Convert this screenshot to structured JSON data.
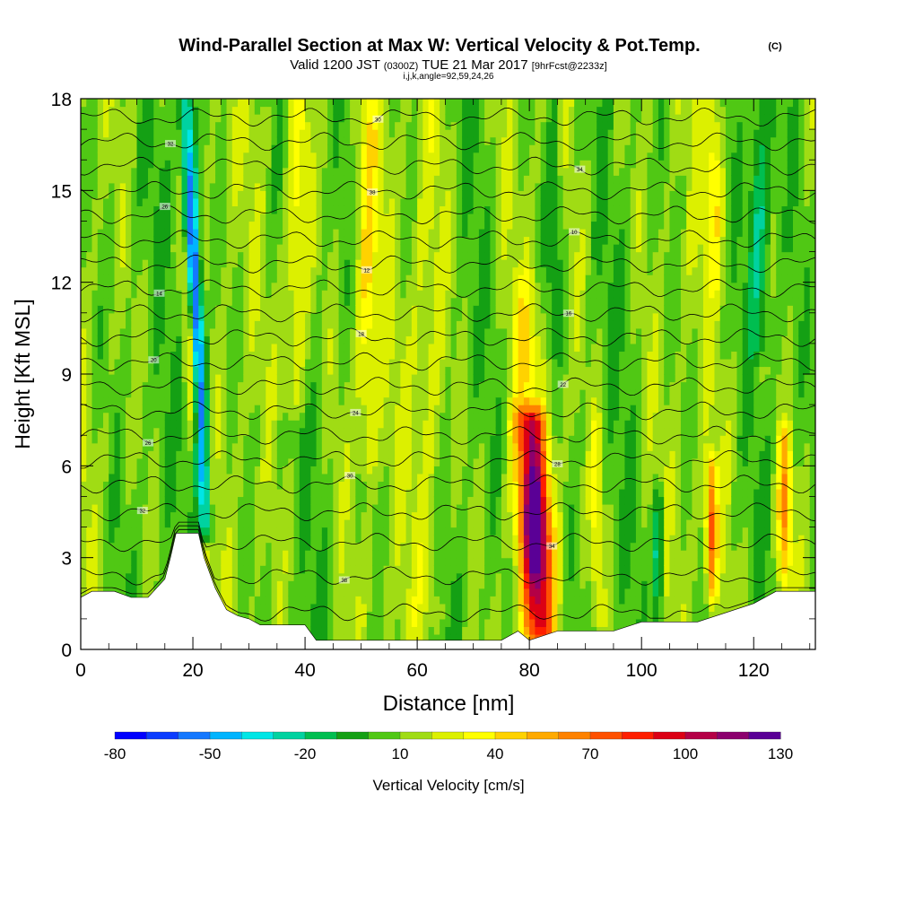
{
  "chart_data": {
    "type": "heatmap",
    "title": "Wind-Parallel Section at Max W: Vertical Velocity & Pot.Temp.",
    "title_suffix": "(C)",
    "subtitle": {
      "valid": "Valid 1200 JST",
      "zulu": "(0300Z)",
      "date": "TUE 21 Mar 2017",
      "forecast": "[9hrFcst@2233z]"
    },
    "subtitle2": "i,j,k,angle=92,59,24,26",
    "xlabel": "Distance [nm]",
    "ylabel": "Height [Kft MSL]",
    "xlim": [
      0,
      131
    ],
    "ylim": [
      0,
      18
    ],
    "xticks": [
      0,
      20,
      40,
      60,
      80,
      100,
      120
    ],
    "yticks": [
      0,
      3,
      6,
      9,
      12,
      15,
      18
    ],
    "colorbar": {
      "label": "Vertical Velocity [cm/s]",
      "tick_labels": [
        -80,
        -50,
        -20,
        10,
        40,
        70,
        100,
        130
      ],
      "min": -80,
      "step": 10,
      "colors": [
        "#0000ff",
        "#0a3cff",
        "#1478ff",
        "#00b4ff",
        "#00e6e6",
        "#00d2a0",
        "#00be50",
        "#14a014",
        "#50c814",
        "#a0dc14",
        "#dcf000",
        "#ffff00",
        "#ffd200",
        "#ffaa00",
        "#ff8200",
        "#ff5000",
        "#ff1e00",
        "#dc0014",
        "#b40046",
        "#8c006e",
        "#5a0096"
      ]
    },
    "terrain": {
      "distance_nm": [
        0,
        2,
        6,
        9,
        12,
        15,
        16,
        17,
        21,
        22,
        24,
        26,
        28,
        30,
        32,
        40,
        42,
        50,
        60,
        70,
        75,
        78,
        80,
        85,
        95,
        100,
        103,
        110,
        120,
        124,
        128,
        131
      ],
      "height_kft": [
        1.7,
        1.9,
        1.9,
        1.7,
        1.7,
        2.3,
        3.0,
        3.8,
        3.8,
        3.0,
        2.0,
        1.3,
        1.1,
        1.0,
        0.8,
        0.8,
        0.3,
        0.3,
        0.3,
        0.3,
        0.3,
        0.6,
        0.3,
        0.6,
        0.6,
        0.9,
        0.9,
        0.9,
        1.5,
        1.9,
        1.9,
        1.9
      ]
    },
    "vertical_velocity_features": [
      {
        "x": 20.5,
        "z_top": 18,
        "z_bottom": 4.0,
        "lean": -0.25,
        "w": -80,
        "width": 1.3
      },
      {
        "x": 19.5,
        "z_top": 13,
        "z_bottom": 7.0,
        "lean": -0.3,
        "w": 50,
        "width": 1.0
      },
      {
        "x": 38.5,
        "z_top": 18,
        "z_bottom": 8.0,
        "lean": 0.1,
        "w": 45,
        "width": 2.2
      },
      {
        "x": 51.0,
        "z_top": 18,
        "z_bottom": 6.0,
        "lean": 0.05,
        "w": 40,
        "width": 1.8
      },
      {
        "x": 62.0,
        "z_top": 18,
        "z_bottom": 1.0,
        "lean": 0.0,
        "w": 30,
        "width": 3.0
      },
      {
        "x": 81.0,
        "z_top": 7.5,
        "z_bottom": 0.5,
        "lean": -0.2,
        "w": 135,
        "width": 2.8
      },
      {
        "x": 79.5,
        "z_top": 12,
        "z_bottom": 7.0,
        "lean": 0.0,
        "w": 35,
        "width": 2.5
      },
      {
        "x": 84.5,
        "z_top": 18,
        "z_bottom": 10,
        "lean": 0.0,
        "w": -15,
        "width": 1.5
      },
      {
        "x": 92.0,
        "z_top": 7.5,
        "z_bottom": 1.0,
        "lean": 0.0,
        "w": 35,
        "width": 1.0
      },
      {
        "x": 103.0,
        "z_top": 5.0,
        "z_bottom": 1.0,
        "lean": 0.0,
        "w": -35,
        "width": 0.9
      },
      {
        "x": 112.5,
        "z_top": 6.0,
        "z_bottom": 2.0,
        "lean": 0.0,
        "w": 80,
        "width": 1.0
      },
      {
        "x": 125.5,
        "z_top": 7.0,
        "z_bottom": 2.0,
        "lean": 0.0,
        "w": 65,
        "width": 1.2
      },
      {
        "x": 113.0,
        "z_top": 18,
        "z_bottom": 12,
        "lean": 0.0,
        "w": 40,
        "width": 1.5
      },
      {
        "x": 121.0,
        "z_top": 18,
        "z_bottom": 10,
        "lean": 0.0,
        "w": -20,
        "width": 2.0
      }
    ],
    "potential_temperature": {
      "unit": "C",
      "label_values": [
        "26",
        "38",
        "34",
        "32",
        "30",
        "28",
        "26",
        "24",
        "22",
        "20",
        "18",
        "16",
        "14",
        "12",
        "10"
      ],
      "level_base_kft": [
        1.2,
        2.4,
        3.5,
        4.5,
        5.4,
        6.2,
        7.0,
        7.8,
        8.6,
        9.4,
        10.2,
        11.0,
        11.8,
        12.6,
        13.4,
        14.2,
        15.0,
        15.8,
        16.6,
        17.4
      ]
    }
  }
}
